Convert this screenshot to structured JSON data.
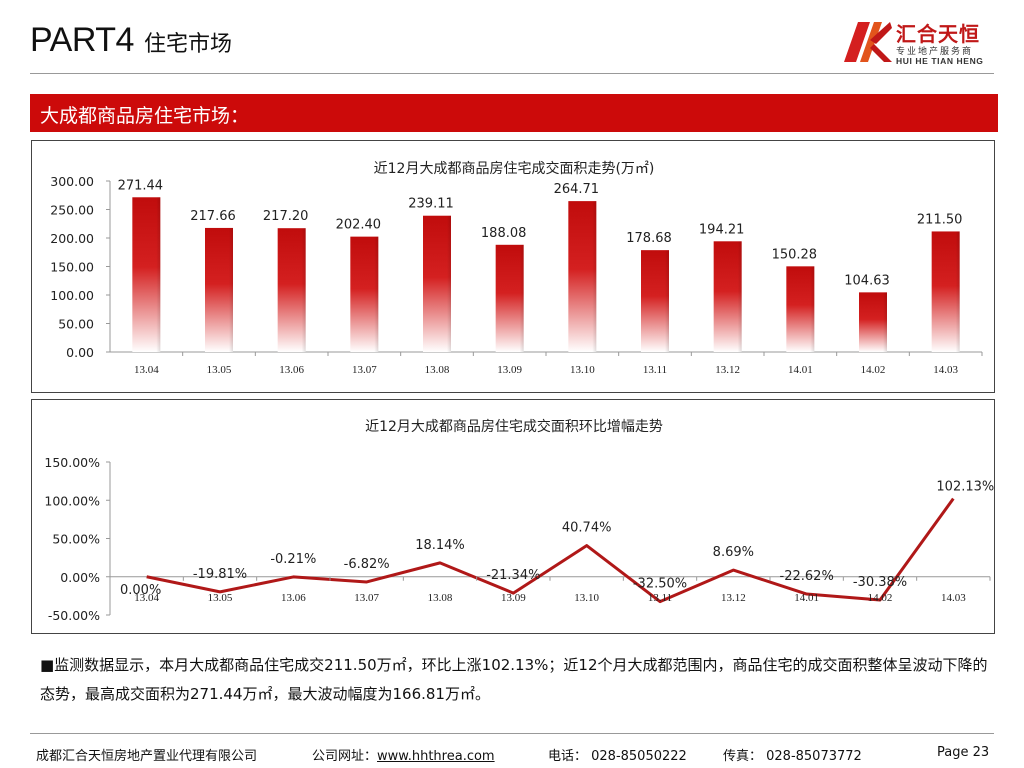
{
  "header": {
    "part": "PART4",
    "subtitle": "住宅市场"
  },
  "logo": {
    "name_cn": "汇合天恒",
    "tagline": "专业地产服务商",
    "name_en": "HUI HE TIAN HENG",
    "color": "#c01818"
  },
  "banner": {
    "text": "大成都商品房住宅市场：",
    "color": "#cc0a0a"
  },
  "chart_data": [
    {
      "type": "bar",
      "title": "近12月大成都商品房住宅成交面积走势(万㎡)",
      "categories": [
        "13.04",
        "13.05",
        "13.06",
        "13.07",
        "13.08",
        "13.09",
        "13.10",
        "13.11",
        "13.12",
        "14.01",
        "14.02",
        "14.03"
      ],
      "values": [
        271.44,
        217.66,
        217.2,
        202.4,
        239.11,
        188.08,
        264.71,
        178.68,
        194.21,
        150.28,
        104.63,
        211.5
      ],
      "value_labels": [
        "271.44",
        "217.66",
        "217.20",
        "202.40",
        "239.11",
        "188.08",
        "264.71",
        "178.68",
        "194.21",
        "150.28",
        "104.63",
        "211.50"
      ],
      "ylim": [
        0,
        300
      ],
      "yticks": [
        "0.00",
        "50.00",
        "100.00",
        "150.00",
        "200.00",
        "250.00",
        "300.00"
      ],
      "grid": false,
      "bar_color": "#c41414"
    },
    {
      "type": "line",
      "title": "近12月大成都商品房住宅成交面积环比增幅走势",
      "categories": [
        "13.04",
        "13.05",
        "13.06",
        "13.07",
        "13.08",
        "13.09",
        "13.10",
        "13.11",
        "13.12",
        "14.01",
        "14.02",
        "14.03"
      ],
      "values": [
        0.0,
        -19.81,
        -0.21,
        -6.82,
        18.14,
        -21.34,
        40.74,
        -32.5,
        8.69,
        -22.62,
        -30.38,
        102.13
      ],
      "value_labels": [
        "0.00%",
        "-19.81%",
        "-0.21%",
        "-6.82%",
        "18.14%",
        "-21.34%",
        "40.74%",
        "-32.50%",
        "8.69%",
        "-22.62%",
        "-30.38%",
        "102.13%"
      ],
      "ylim": [
        -50,
        150
      ],
      "yticks": [
        "-50.00%",
        "0.00%",
        "50.00%",
        "100.00%",
        "150.00%"
      ],
      "grid": false,
      "line_color": "#b01818"
    }
  ],
  "note": "■监测数据显示，本月大成都商品住宅成交211.50万㎡，环比上涨102.13%；近12个月大成都范围内，商品住宅的成交面积整体呈波动下降的态势，最高成交面积为271.44万㎡，最大波动幅度为166.81万㎡。",
  "footer": {
    "company": "成都汇合天恒房地产置业代理有限公司",
    "website_label": "公司网址：",
    "website": "www.hhthrea.com",
    "phone": "电话： 028-85050222",
    "fax": "传真： 028-85073772",
    "page": "Page 23"
  }
}
